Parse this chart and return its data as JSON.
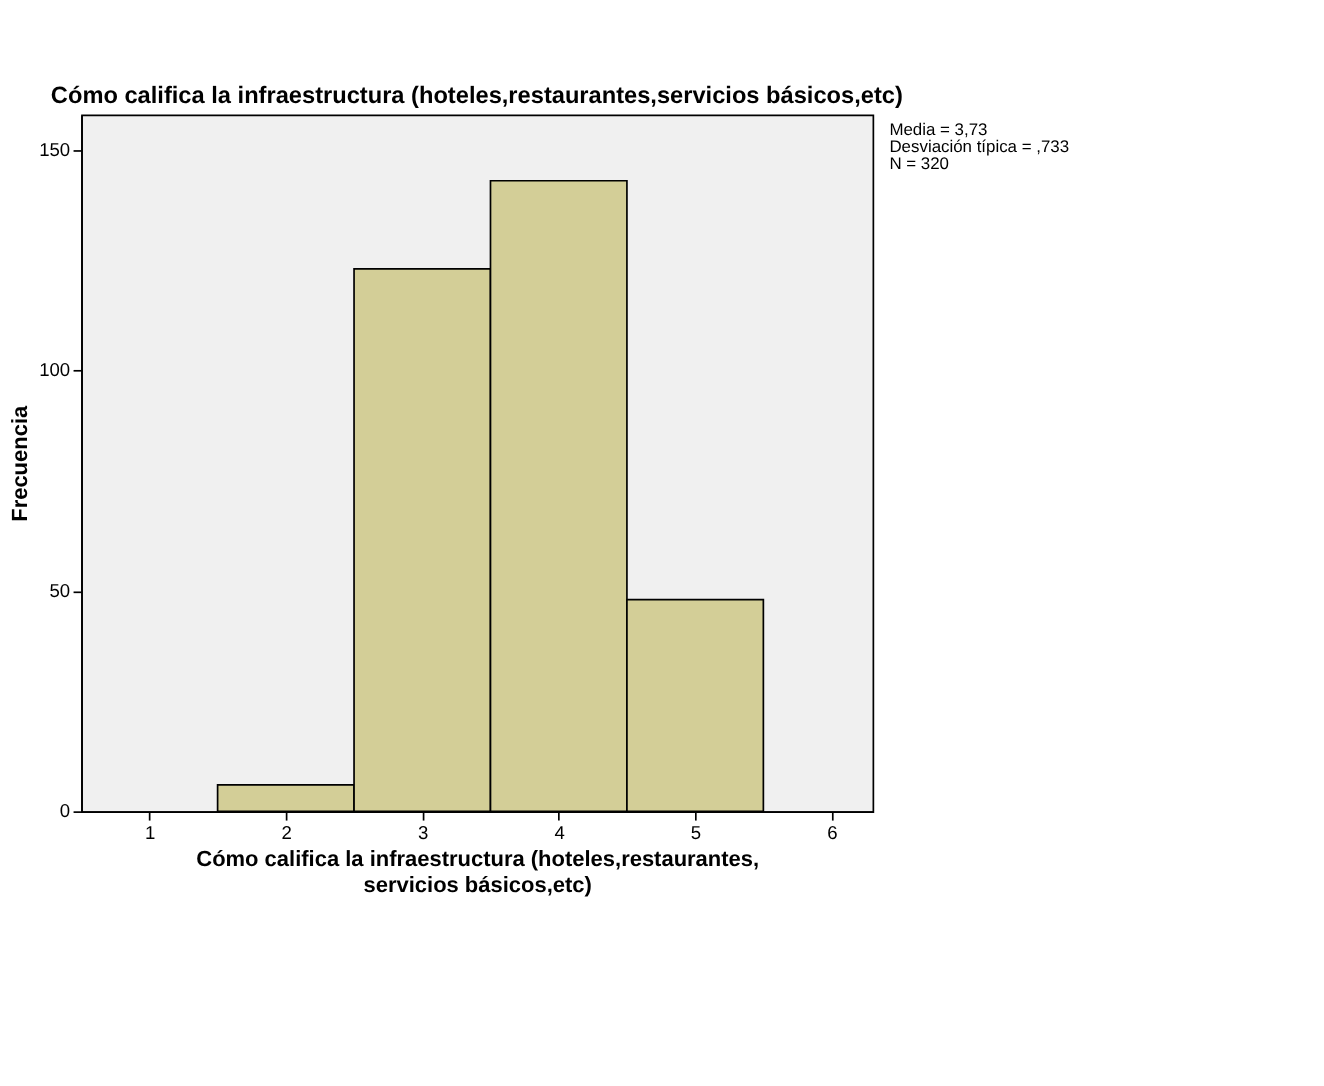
{
  "chart_data": {
    "type": "histogram",
    "title": "Cómo califica la infraestructura (hoteles,restaurantes,servicios básicos,etc)",
    "xlabel": "Cómo califica la infraestructura (hoteles,restaurantes, servicios básicos,etc)",
    "ylabel": "Frecuencia",
    "bins": [
      1.5,
      2.5,
      3.5,
      4.5,
      5.5
    ],
    "values": [
      6,
      123,
      143,
      48
    ],
    "color": "#d3ce97",
    "xlim": [
      0.5,
      6.3
    ],
    "xticks": [
      1,
      2,
      3,
      4,
      5,
      6
    ],
    "ylim": [
      0,
      158
    ],
    "yticks": [
      0,
      50,
      100,
      150
    ],
    "grid": false,
    "annotations": [
      "Media = 3,73",
      "Desviación típica = ,733",
      "N = 320"
    ]
  }
}
